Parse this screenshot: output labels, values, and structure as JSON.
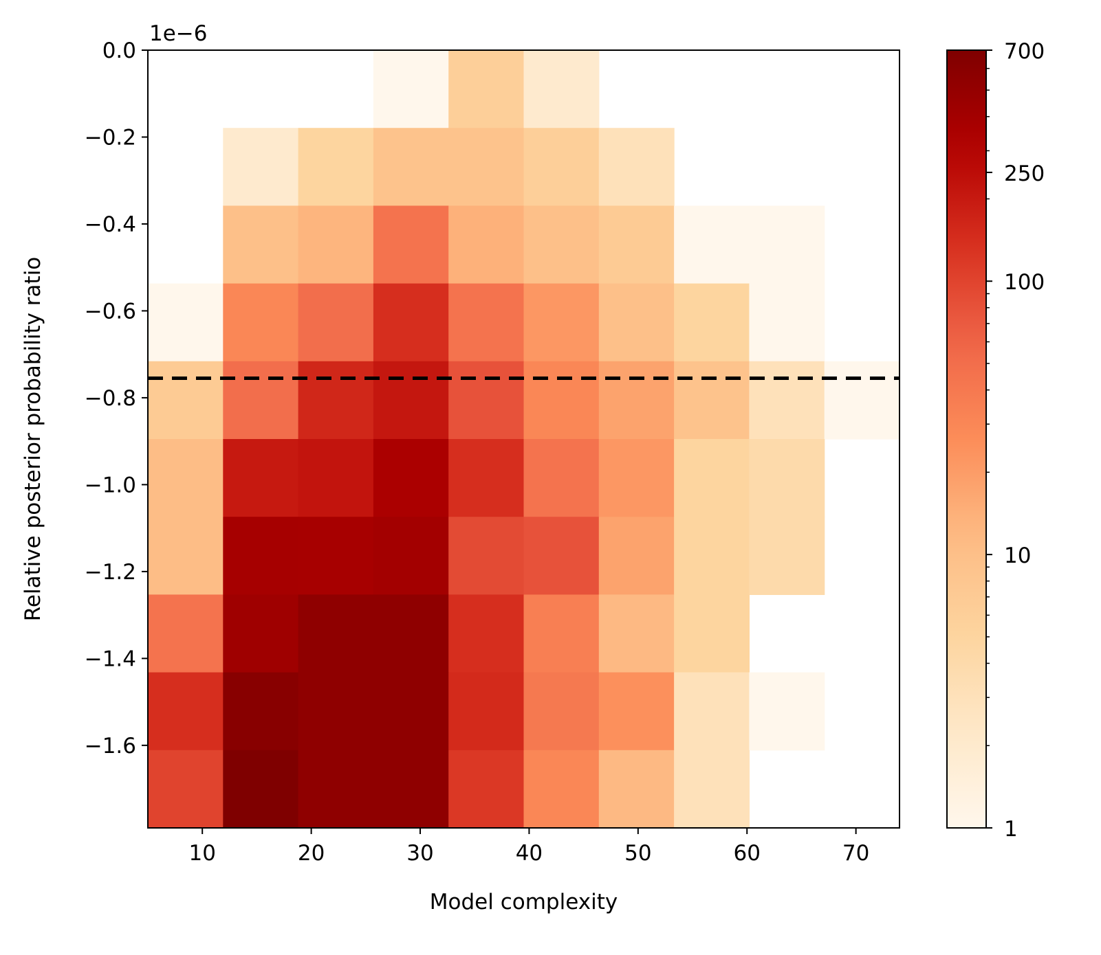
{
  "chart_data": {
    "type": "heatmap",
    "xlabel": "Model complexity",
    "ylabel": "Relative posterior probability ratio",
    "y_offset_label": "1e−6",
    "colormap": "OrRd",
    "color_scale": "log",
    "xlim": [
      5.0,
      74.0
    ],
    "ylim": [
      -1.79,
      0.0
    ],
    "x_ticks": [
      10,
      20,
      30,
      40,
      50,
      60,
      70
    ],
    "y_ticks": [
      0.0,
      -0.2,
      -0.4,
      -0.6,
      -0.8,
      -1.0,
      -1.2,
      -1.4,
      -1.6
    ],
    "y_tick_labels": [
      "0.0",
      "−0.2",
      "−0.4",
      "−0.6",
      "−0.8",
      "−1.0",
      "−1.2",
      "−1.4",
      "−1.6"
    ],
    "x_bin_edges": [
      5.0,
      11.9,
      18.8,
      25.7,
      32.6,
      39.5,
      46.4,
      53.3,
      60.2,
      67.1,
      74.0
    ],
    "y_bin_edges": [
      0.0,
      -0.179,
      -0.358,
      -0.537,
      -0.716,
      -0.895,
      -1.074,
      -1.253,
      -1.432,
      -1.611,
      -1.79
    ],
    "counts": [
      [
        0,
        0,
        0,
        1,
        6,
        2,
        0,
        0,
        0,
        0
      ],
      [
        0,
        2,
        5,
        9,
        9,
        6,
        3,
        0,
        0,
        0
      ],
      [
        0,
        10,
        13,
        45,
        14,
        10,
        7,
        1,
        1,
        0
      ],
      [
        1,
        30,
        50,
        140,
        45,
        22,
        10,
        5,
        1,
        0
      ],
      [
        7,
        50,
        160,
        210,
        80,
        30,
        18,
        9,
        3,
        1
      ],
      [
        11,
        200,
        220,
        350,
        140,
        45,
        22,
        5,
        4,
        0
      ],
      [
        11,
        380,
        370,
        400,
        90,
        80,
        18,
        5,
        4,
        0
      ],
      [
        45,
        420,
        540,
        540,
        140,
        35,
        12,
        5,
        0,
        0
      ],
      [
        140,
        610,
        540,
        540,
        150,
        40,
        25,
        3,
        1,
        0
      ],
      [
        100,
        700,
        540,
        540,
        120,
        30,
        12,
        3,
        0,
        0
      ]
    ],
    "threshold_line": {
      "y": -0.755,
      "style": "dashed",
      "color": "#000000"
    },
    "colorbar": {
      "range": [
        1,
        700
      ],
      "ticks": [
        1,
        10,
        100,
        250,
        700
      ],
      "tick_labels": [
        "1",
        "10",
        "100",
        "250",
        "700"
      ]
    }
  }
}
